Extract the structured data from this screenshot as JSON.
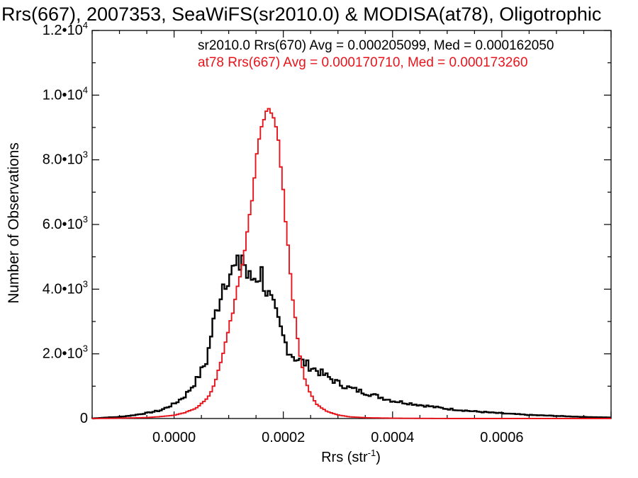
{
  "chart_data": {
    "type": "histogram-step",
    "title": "Rrs(667), 2007353, SeaWiFS(sr2010.0) & MODISA(at78), Oligotrophic",
    "xlabel": "Rrs (str",
    "xlabel_exp": "-1",
    "xlabel_close": ")",
    "ylabel": "Number of Observations",
    "xlim": [
      -0.00015,
      0.0008
    ],
    "ylim": [
      0,
      12000
    ],
    "x_ticks": [
      {
        "value": 0.0,
        "label": "0.0000"
      },
      {
        "value": 0.0002,
        "label": "0.0002"
      },
      {
        "value": 0.0004,
        "label": "0.0004"
      },
      {
        "value": 0.0006,
        "label": "0.0006"
      }
    ],
    "y_ticks": [
      {
        "value": 0,
        "mantissa": "0",
        "exp": ""
      },
      {
        "value": 2000,
        "mantissa": "2.0•10",
        "exp": "3"
      },
      {
        "value": 4000,
        "mantissa": "4.0•10",
        "exp": "3"
      },
      {
        "value": 6000,
        "mantissa": "6.0•10",
        "exp": "3"
      },
      {
        "value": 8000,
        "mantissa": "8.0•10",
        "exp": "3"
      },
      {
        "value": 10000,
        "mantissa": "1.0•10",
        "exp": "4"
      },
      {
        "value": 12000,
        "mantissa": "1.2•10",
        "exp": "4"
      }
    ],
    "legend": [
      {
        "text": "sr2010.0 Rrs(670) Avg = 0.000205099, Med = 0.000162050",
        "color": "#000000"
      },
      {
        "text": "at78 Rrs(667) Avg = 0.000170710, Med = 0.000173260",
        "color": "#e8141c"
      }
    ],
    "series": [
      {
        "color": "#000000",
        "x": [
          -0.00015,
          -0.000125,
          -0.0001,
          -7.5e-05,
          -5e-05,
          -2.5e-05,
          0.0,
          2e-05,
          4e-05,
          6e-05,
          7e-05,
          8e-05,
          9e-05,
          0.0001,
          0.00011,
          0.00012,
          0.000125,
          0.00013,
          0.000135,
          0.00014,
          0.00015,
          0.00016,
          0.00017,
          0.00018,
          0.00019,
          0.0002,
          0.00021,
          0.00022,
          0.00024,
          0.00026,
          0.00028,
          0.0003,
          0.00032,
          0.00035,
          0.0004,
          0.00045,
          0.0005,
          0.00055,
          0.0006,
          0.00065,
          0.0007,
          0.00075,
          0.0008
        ],
        "y": [
          0,
          30,
          50,
          100,
          170,
          250,
          450,
          700,
          1150,
          1800,
          2800,
          3500,
          4200,
          4500,
          4600,
          4700,
          5100,
          4700,
          4300,
          4300,
          4400,
          4500,
          3900,
          3500,
          3000,
          2500,
          2100,
          1900,
          1700,
          1500,
          1300,
          1100,
          950,
          800,
          550,
          420,
          300,
          220,
          160,
          110,
          80,
          50,
          30
        ]
      },
      {
        "color": "#e8141c",
        "x": [
          -0.00015,
          -0.0001,
          -5e-05,
          -2.5e-05,
          0.0,
          2e-05,
          4e-05,
          6e-05,
          7e-05,
          8e-05,
          9e-05,
          0.0001,
          0.00011,
          0.00012,
          0.00013,
          0.00014,
          0.00015,
          0.00016,
          0.00017,
          0.000175,
          0.00018,
          0.000185,
          0.00019,
          0.0002,
          0.00021,
          0.00022,
          0.00023,
          0.00024,
          0.00025,
          0.00026,
          0.00028,
          0.0003,
          0.00032,
          0.00035,
          0.0004,
          0.00045,
          0.0005,
          0.0008
        ],
        "y": [
          0,
          10,
          30,
          60,
          100,
          180,
          320,
          600,
          900,
          1400,
          2000,
          2800,
          3500,
          4300,
          5300,
          6500,
          7900,
          9000,
          9500,
          9700,
          9600,
          9300,
          8600,
          6900,
          5000,
          3300,
          2000,
          1200,
          750,
          450,
          220,
          110,
          55,
          25,
          10,
          5,
          0,
          0
        ]
      }
    ]
  }
}
